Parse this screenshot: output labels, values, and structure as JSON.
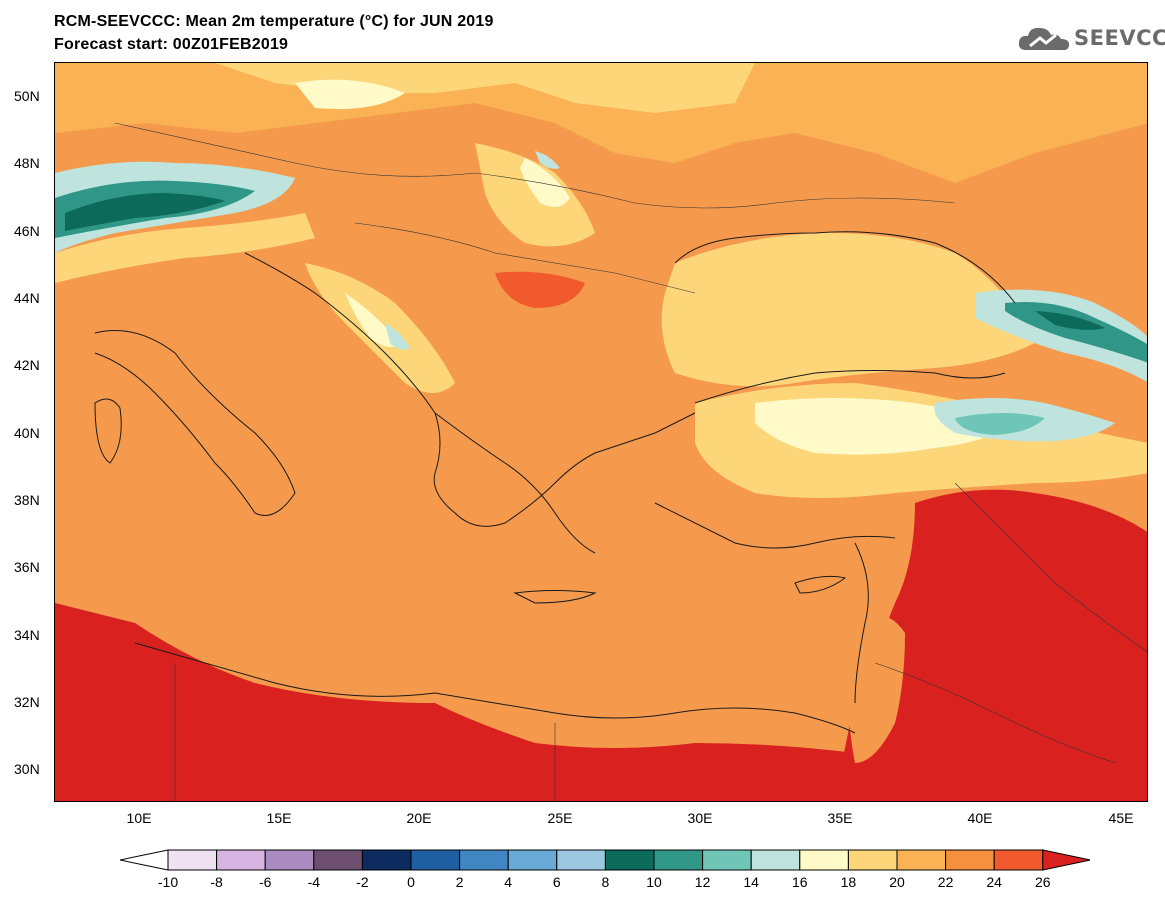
{
  "title": "RCM-SEEVCCC: Mean 2m temperature (°C) for JUN 2019",
  "subtitle": "Forecast start: 00Z01FEB2019",
  "logo": {
    "text": "SEEVCCC",
    "icon": "cloud-icon"
  },
  "map": {
    "lon_range": [
      7,
      46
    ],
    "lat_range": [
      29,
      51
    ],
    "lat_ticks": [
      "50N",
      "48N",
      "46N",
      "44N",
      "42N",
      "40N",
      "38N",
      "36N",
      "34N",
      "32N",
      "30N"
    ],
    "lon_ticks": [
      "10E",
      "15E",
      "20E",
      "25E",
      "30E",
      "35E",
      "40E",
      "45E"
    ]
  },
  "colorbar": {
    "labels": [
      "-10",
      "-8",
      "-6",
      "-4",
      "-2",
      "0",
      "2",
      "4",
      "6",
      "8",
      "10",
      "12",
      "14",
      "16",
      "18",
      "20",
      "22",
      "24",
      "26"
    ],
    "colors": [
      "#ffffff",
      "#efe3f2",
      "#d6b3e0",
      "#a98bc0",
      "#6e4f72",
      "#0d2a5e",
      "#1f5ea0",
      "#3f86c2",
      "#6aaad6",
      "#9cc7e0",
      "#0b6a5a",
      "#2f9688",
      "#6fc6b6",
      "#bfe4de",
      "#fffac8",
      "#fed67a",
      "#fbb255",
      "#f5903f",
      "#f05a2c",
      "#d92220"
    ]
  }
}
